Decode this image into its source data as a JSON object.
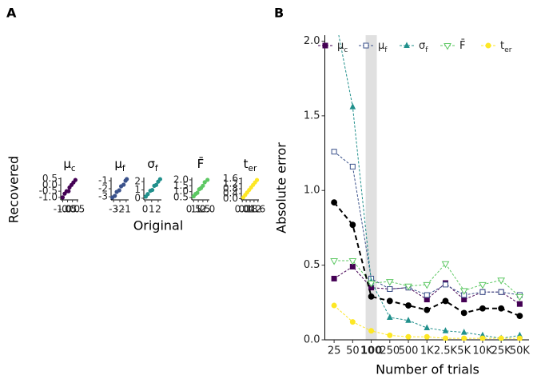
{
  "chart_data": [
    {
      "type": "scatter",
      "panel_label": "A",
      "ylabel": "Recovered",
      "xlabel": "Original",
      "panels": [
        {
          "title": "μ",
          "title_sub": "c",
          "color": "#440154",
          "x": [
            -1.0,
            -0.8,
            -0.6,
            -0.4,
            -0.3,
            -0.1,
            0.1,
            0.3
          ],
          "y": [
            -1.0,
            -0.7,
            -0.5,
            -0.5,
            -0.2,
            0.0,
            0.2,
            0.4
          ],
          "xlim": [
            -1.2,
            0.6
          ],
          "ylim": [
            -1.2,
            0.6
          ],
          "xticks": [
            {
              "value": -1,
              "label": "-1.0"
            },
            {
              "value": -0.5,
              "label": "-0.5"
            },
            {
              "value": 0,
              "label": "0.0"
            },
            0.5
          ],
          "yticks": [
            {
              "value": -1,
              "label": "-1.0"
            },
            -0.5,
            {
              "value": 0,
              "label": "0.0"
            },
            0.5
          ]
        },
        {
          "title": "μ",
          "title_sub": "f",
          "color": "#3b528b",
          "x": [
            -3.2,
            -2.8,
            -2.5,
            -2.1,
            -1.8,
            -1.4,
            -1.1,
            -0.9
          ],
          "y": [
            -3.1,
            -2.9,
            -2.4,
            -2.2,
            -1.7,
            -1.5,
            -1.0,
            -0.8
          ],
          "xlim": [
            -3.4,
            -0.6
          ],
          "ylim": [
            -3.4,
            -0.6
          ],
          "xticks": [
            -3,
            -2,
            -1
          ],
          "yticks": [
            -3,
            -2,
            -1
          ]
        },
        {
          "title": "σ",
          "title_sub": "f",
          "color": "#21908c",
          "x": [
            0.1,
            0.4,
            0.8,
            1.1,
            1.4,
            1.7,
            2.0,
            2.3
          ],
          "y": [
            0.2,
            0.5,
            0.9,
            1.0,
            1.5,
            1.6,
            2.0,
            2.3
          ],
          "xlim": [
            -0.2,
            2.5
          ],
          "ylim": [
            -0.2,
            2.5
          ],
          "xticks": [
            0,
            1,
            2
          ],
          "yticks": [
            0,
            1,
            2
          ]
        },
        {
          "title": "F̄",
          "title_sub": "",
          "color": "#5dc863",
          "x": [
            0.5,
            0.7,
            0.9,
            1.1,
            1.3,
            1.5,
            1.7,
            2.0
          ],
          "y": [
            0.6,
            0.8,
            0.9,
            1.2,
            1.3,
            1.5,
            1.8,
            2.0
          ],
          "xlim": [
            0.3,
            2.2
          ],
          "ylim": [
            0.3,
            2.2
          ],
          "xticks": [
            0.5,
            {
              "value": 1,
              "label": "1.0"
            },
            1.5,
            {
              "value": 2,
              "label": "2.0"
            }
          ],
          "yticks": [
            0.5,
            {
              "value": 1,
              "label": "1.0"
            },
            1.5,
            {
              "value": 2,
              "label": "2.0"
            }
          ]
        },
        {
          "title": "t",
          "title_sub": "er",
          "color": "#fde725",
          "x": [
            0.1,
            0.3,
            0.5,
            0.7,
            0.9,
            1.1,
            1.3,
            1.5
          ],
          "y": [
            0.1,
            0.3,
            0.5,
            0.7,
            0.9,
            1.1,
            1.3,
            1.5
          ],
          "xlim": [
            -0.1,
            1.7
          ],
          "ylim": [
            -0.1,
            1.7
          ],
          "xticks": [
            {
              "value": 0,
              "label": "0.0"
            },
            0.4,
            0.8,
            1.2,
            1.6
          ],
          "yticks": [
            {
              "value": 0,
              "label": "0.0"
            },
            0.4,
            0.8,
            1.2,
            1.6
          ]
        }
      ]
    },
    {
      "type": "line",
      "panel_label": "B",
      "xlabel": "Number of trials",
      "ylabel": "Absolute error",
      "categories": [
        "25",
        "50",
        "100",
        "250",
        "500",
        "1K",
        "2.5K",
        "5K",
        "10K",
        "25K",
        "50K"
      ],
      "highlight": "100",
      "ylim": [
        0,
        2.04
      ],
      "yticks": [
        {
          "value": 0,
          "label": "0.0"
        },
        0.5,
        {
          "value": 1,
          "label": "1.0"
        },
        1.5,
        {
          "value": 2,
          "label": "2.0"
        }
      ],
      "series": [
        {
          "name": "μ",
          "sub": "c",
          "color": "#440154",
          "marker": "square",
          "values": [
            0.41,
            0.49,
            0.35,
            0.34,
            0.35,
            0.27,
            0.38,
            0.27,
            0.32,
            0.32,
            0.24
          ]
        },
        {
          "name": "μ",
          "sub": "f",
          "color": "#3b528b",
          "marker": "square-open",
          "values": [
            1.26,
            1.16,
            0.41,
            0.34,
            0.35,
            0.3,
            0.37,
            0.3,
            0.32,
            0.32,
            0.3
          ]
        },
        {
          "name": "σ",
          "sub": "f",
          "color": "#21908c",
          "marker": "triangle",
          "values": [
            2.2,
            1.56,
            0.39,
            0.15,
            0.13,
            0.08,
            0.06,
            0.05,
            0.03,
            0.01,
            0.03
          ]
        },
        {
          "name": "F̄",
          "sub": "",
          "color": "#5dc863",
          "marker": "triangle-open",
          "values": [
            0.53,
            0.53,
            0.38,
            0.39,
            0.36,
            0.37,
            0.51,
            0.33,
            0.37,
            0.4,
            0.29
          ]
        },
        {
          "name": "t",
          "sub": "er",
          "color": "#fde725",
          "marker": "circle",
          "values": [
            0.23,
            0.12,
            0.06,
            0.03,
            0.02,
            0.02,
            0.01,
            0.01,
            0.01,
            0.01,
            0.01
          ]
        },
        {
          "color": "#000000",
          "marker": "circle",
          "bold": true,
          "values": [
            0.92,
            0.77,
            0.29,
            0.26,
            0.23,
            0.2,
            0.26,
            0.18,
            0.21,
            0.21,
            0.16
          ]
        }
      ]
    }
  ]
}
